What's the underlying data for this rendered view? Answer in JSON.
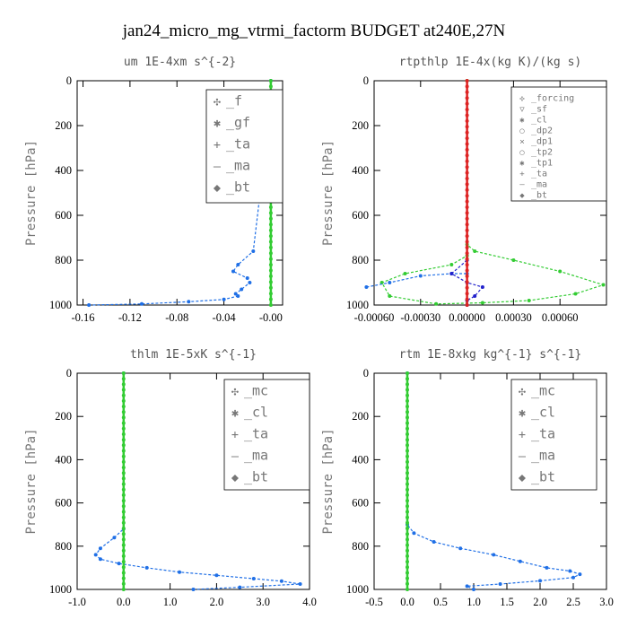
{
  "title": "jan24_micro_mg_vtrmi_factorm  BUDGET at240E,27N",
  "ylabel": "Pressure [hPa]",
  "chart_data": [
    {
      "type": "line",
      "title": "um  1E-4xm s^{-2}",
      "ylabel": "Pressure [hPa]",
      "xlim": [
        -0.165,
        0.01
      ],
      "ylim": [
        1000,
        0
      ],
      "xticks": [
        -0.16,
        -0.12,
        -0.08,
        -0.04,
        0.0
      ],
      "xtick_labels": [
        "-0.16",
        "-0.12",
        "-0.08",
        "-0.04",
        "-0.00"
      ],
      "yticks": [
        0,
        200,
        400,
        600,
        800,
        1000
      ],
      "ytick_labels": [
        "0",
        "200",
        "400",
        "600",
        "800",
        "1000"
      ],
      "legend": [
        "_f",
        "_gf",
        "_ta",
        "_ma",
        "_bt"
      ],
      "legend_position": "top-right",
      "series": [
        {
          "name": "_gf",
          "color": "#1f6fe6",
          "x": [
            0.0,
            0.0,
            -0.001,
            -0.003,
            -0.015,
            -0.028,
            -0.032,
            -0.02,
            -0.018,
            -0.025,
            -0.03,
            -0.028,
            -0.04,
            -0.07,
            -0.11,
            -0.155
          ],
          "y": [
            0,
            200,
            210,
            230,
            760,
            820,
            850,
            880,
            900,
            930,
            950,
            960,
            975,
            985,
            995,
            1000
          ]
        },
        {
          "name": "_f",
          "color": "#33cc33",
          "x": [
            0.0,
            0.0
          ],
          "y": [
            0,
            1000
          ]
        }
      ]
    },
    {
      "type": "line",
      "title": "rtpthlp  1E-4x(kg K)/(kg s)",
      "ylabel": "Pressure [hPa]",
      "xlim": [
        -0.0006,
        0.0009
      ],
      "ylim": [
        1000,
        0
      ],
      "xticks": [
        -0.0006,
        -0.0003,
        0.0,
        0.0003,
        0.0006
      ],
      "xtick_labels": [
        "-0.00060",
        "-0.00030",
        "0.00000",
        "0.00030",
        "0.00060"
      ],
      "yticks": [
        0,
        200,
        400,
        600,
        800,
        1000
      ],
      "ytick_labels": [
        "0",
        "200",
        "400",
        "600",
        "800",
        "1000"
      ],
      "legend": [
        "_forcing",
        "_sf",
        "_cl",
        "_dp2",
        "_dp1",
        "_tp2",
        "_tp1",
        "_ta",
        "_ma",
        "_bt"
      ],
      "legend_position": "top-right",
      "series": [
        {
          "name": "_dp1",
          "color": "#33cc33",
          "x": [
            0.0,
            0.0,
            5e-05,
            0.0003,
            0.0006,
            0.00088,
            0.0007,
            0.0004,
            0.0001,
            -0.0002,
            -0.0005,
            -0.00055,
            -0.0004,
            -0.0001,
            0.0
          ],
          "y": [
            0,
            730,
            760,
            800,
            850,
            910,
            950,
            980,
            990,
            995,
            960,
            900,
            860,
            820,
            780
          ]
        },
        {
          "name": "_tp1",
          "color": "#1f6fe6",
          "x": [
            -0.00065,
            -0.0005,
            -0.0003,
            -0.0001,
            0.0,
            0.0
          ],
          "y": [
            920,
            900,
            870,
            860,
            860,
            1000
          ]
        },
        {
          "name": "_ta",
          "color": "#2222cc",
          "x": [
            0.0,
            -0.0001,
            0.0,
            0.0001,
            5e-05,
            0.0
          ],
          "y": [
            800,
            860,
            900,
            920,
            960,
            980
          ]
        },
        {
          "name": "_sf",
          "color": "#dd2222",
          "x": [
            0.0,
            0.0
          ],
          "y": [
            0,
            1000
          ]
        }
      ]
    },
    {
      "type": "line",
      "title": "thlm  1E-5xK s^{-1}",
      "ylabel": "Pressure [hPa]",
      "xlim": [
        -1.0,
        4.0
      ],
      "ylim": [
        1000,
        0
      ],
      "xticks": [
        -1.0,
        0.0,
        1.0,
        2.0,
        3.0,
        4.0
      ],
      "xtick_labels": [
        "-1.0",
        "0.0",
        "1.0",
        "2.0",
        "3.0",
        "4.0"
      ],
      "yticks": [
        0,
        200,
        400,
        600,
        800,
        1000
      ],
      "ytick_labels": [
        "0",
        "200",
        "400",
        "600",
        "800",
        "1000"
      ],
      "legend": [
        "_mc",
        "_cl",
        "_ta",
        "_ma",
        "_bt"
      ],
      "legend_position": "top-right",
      "series": [
        {
          "name": "_cl",
          "color": "#1f6fe6",
          "x": [
            0.0,
            0.0,
            -0.2,
            -0.5,
            -0.6,
            -0.5,
            -0.1,
            0.5,
            1.2,
            2.0,
            2.8,
            3.4,
            3.8,
            2.5,
            1.5
          ],
          "y": [
            0,
            720,
            760,
            810,
            840,
            860,
            880,
            900,
            920,
            935,
            950,
            962,
            975,
            990,
            1000
          ]
        },
        {
          "name": "_mc",
          "color": "#33cc33",
          "x": [
            0.0,
            0.0
          ],
          "y": [
            0,
            1000
          ]
        }
      ]
    },
    {
      "type": "line",
      "title": "rtm  1E-8xkg kg^{-1} s^{-1}",
      "ylabel": "Pressure [hPa]",
      "xlim": [
        -0.5,
        3.0
      ],
      "ylim": [
        1000,
        0
      ],
      "xticks": [
        -0.5,
        0.0,
        0.5,
        1.0,
        1.5,
        2.0,
        2.5,
        3.0
      ],
      "xtick_labels": [
        "-0.5",
        "0.0",
        "0.5",
        "1.0",
        "1.5",
        "2.0",
        "2.5",
        "3.0"
      ],
      "yticks": [
        0,
        200,
        400,
        600,
        800,
        1000
      ],
      "ytick_labels": [
        "0",
        "200",
        "400",
        "600",
        "800",
        "1000"
      ],
      "legend": [
        "_mc",
        "_cl",
        "_ta",
        "_ma",
        "_bt"
      ],
      "legend_position": "top-right",
      "series": [
        {
          "name": "_cl",
          "color": "#1f6fe6",
          "x": [
            0.0,
            0.0,
            0.1,
            0.4,
            0.8,
            1.3,
            1.7,
            2.1,
            2.45,
            2.6,
            2.5,
            2.0,
            1.4,
            0.9,
            1.0
          ],
          "y": [
            0,
            700,
            740,
            780,
            810,
            840,
            870,
            900,
            915,
            930,
            945,
            960,
            975,
            985,
            1000
          ]
        },
        {
          "name": "_mc",
          "color": "#33cc33",
          "x": [
            0.0,
            0.0
          ],
          "y": [
            0,
            1000
          ]
        }
      ]
    }
  ],
  "legend_markers": {
    "_f": {
      "color": "#33cc33",
      "glyph": "✣"
    },
    "_gf": {
      "color": "#1f6fe6",
      "glyph": "✱"
    },
    "_ta": {
      "color": "#2222cc",
      "glyph": "+"
    },
    "_ma": {
      "color": "#22aacc",
      "glyph": "–"
    },
    "_bt": {
      "color": "#22dddd",
      "glyph": "◆"
    },
    "_mc": {
      "color": "#33cc33",
      "glyph": "✣"
    },
    "_cl": {
      "color": "#1f6fe6",
      "glyph": "✱"
    },
    "_forcing": {
      "color": "#dd2222",
      "glyph": "✣"
    },
    "_sf": {
      "color": "#dd2222",
      "glyph": "▽"
    },
    "_dp2": {
      "color": "#ee9922",
      "glyph": "○"
    },
    "_dp1": {
      "color": "#33cc33",
      "glyph": "✕"
    },
    "_tp2": {
      "color": "#33cc33",
      "glyph": "○"
    },
    "_tp1": {
      "color": "#1f6fe6",
      "glyph": "✱"
    }
  }
}
